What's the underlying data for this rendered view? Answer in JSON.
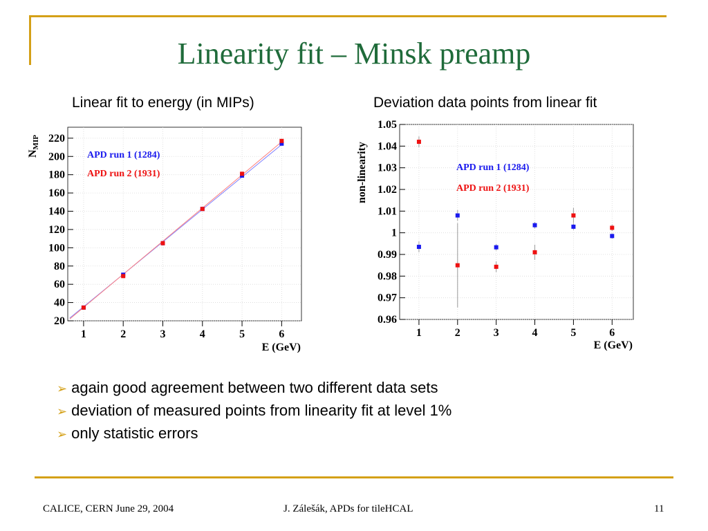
{
  "slide": {
    "title": "Linearity fit – Minsk preamp",
    "left_subtitle": "Linear fit to energy (in MIPs)",
    "right_subtitle": "Deviation data points from linear fit",
    "bullets": [
      "again good agreement between two different data sets",
      "deviation of measured points from linearity fit at level 1%",
      "only statistic errors"
    ],
    "footer_left": "CALICE, CERN June 29, 2004",
    "footer_center": "J. Zálešák, APDs for tileHCAL",
    "page_number": "11",
    "colors": {
      "title": "#1f6b3a",
      "accent": "#d4a017",
      "run1": "#1a1aee",
      "run2": "#ee1111"
    }
  },
  "chart_data": [
    {
      "type": "scatter",
      "xlabel": "E (GeV)",
      "ylabel_main": "N",
      "ylabel_sub": "MIP",
      "xlim": [
        0.6,
        6.5
      ],
      "ylim": [
        20,
        232
      ],
      "xticks": [
        1,
        2,
        3,
        4,
        5,
        6
      ],
      "yticks": [
        20,
        40,
        60,
        80,
        100,
        120,
        140,
        160,
        180,
        200,
        220
      ],
      "legend": [
        "APD run 1 (1284)",
        "APD run 2 (1931)"
      ],
      "series": [
        {
          "name": "APD run 1 (1284)",
          "color": "#1a1aee",
          "x": [
            1,
            2,
            3,
            4,
            5,
            6
          ],
          "y": [
            34.5,
            70.5,
            105,
            142.5,
            179,
            214
          ],
          "fit": [
            [
              0.65,
              23
            ],
            [
              6,
              213
            ]
          ]
        },
        {
          "name": "APD run 2 (1931)",
          "color": "#ee1111",
          "x": [
            1,
            2,
            3,
            4,
            5,
            6
          ],
          "y": [
            34.5,
            69,
            105,
            142.5,
            181,
            217
          ],
          "fit": [
            [
              0.65,
              22
            ],
            [
              6,
              216
            ]
          ]
        }
      ]
    },
    {
      "type": "scatter",
      "xlabel": "E (GeV)",
      "ylabel": "non-linearity",
      "xlim": [
        0.5,
        6.55
      ],
      "ylim": [
        0.96,
        1.05
      ],
      "xticks": [
        1,
        2,
        3,
        4,
        5,
        6
      ],
      "yticks": [
        0.96,
        0.97,
        0.98,
        0.99,
        1,
        1.01,
        1.02,
        1.03,
        1.04,
        1.05
      ],
      "ytick_labels": [
        "0.96",
        "0.97",
        "0.98",
        "0.99",
        "1",
        "1.01",
        "1.02",
        "1.03",
        "1.04",
        "1.05"
      ],
      "legend": [
        "APD run 1 (1284)",
        "APD run 2 (1931)"
      ],
      "series": [
        {
          "name": "APD run 1 (1284)",
          "color": "#1a1aee",
          "x": [
            1,
            2,
            3,
            4,
            5,
            6
          ],
          "y": [
            0.9935,
            1.008,
            0.9933,
            1.0035,
            1.0028,
            0.9985
          ],
          "err": [
            0.0025,
            0.0025,
            0.0015,
            0.0015,
            0.0015,
            0.0012
          ]
        },
        {
          "name": "APD run 2 (1931)",
          "color": "#ee1111",
          "x": [
            1,
            2,
            3,
            4,
            5,
            6
          ],
          "y": [
            1.042,
            0.985,
            0.9843,
            0.991,
            1.008,
            1.0023
          ],
          "err": [
            0.0025,
            0.0195,
            0.0025,
            0.0035,
            0.0035,
            0.0015
          ]
        }
      ]
    }
  ]
}
